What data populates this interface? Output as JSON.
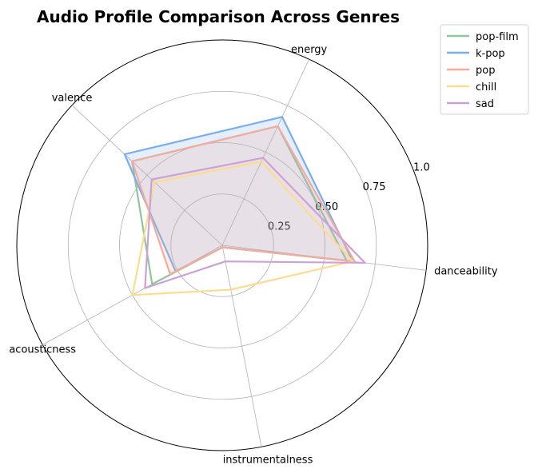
{
  "chart_data": {
    "type": "radar",
    "title": "Audio Profile Comparison Across Genres",
    "axes": [
      "danceability",
      "energy",
      "valence",
      "acousticness",
      "instrumentalness"
    ],
    "rlim": [
      0,
      1.0
    ],
    "rticks": [
      "0.25",
      "0.50",
      "0.75",
      "1.0"
    ],
    "grid": true,
    "legend_position": "top-right outside",
    "series": [
      {
        "name": "pop-film",
        "color": "#8fc79a",
        "fill": false,
        "values": [
          0.61,
          0.64,
          0.6,
          0.39,
          0.01
        ]
      },
      {
        "name": "k-pop",
        "color": "#7aaeea",
        "fill": true,
        "values": [
          0.64,
          0.69,
          0.65,
          0.26,
          0.01
        ]
      },
      {
        "name": "pop",
        "color": "#f5ab9c",
        "fill": true,
        "values": [
          0.65,
          0.64,
          0.6,
          0.29,
          0.01
        ]
      },
      {
        "name": "chill",
        "color": "#fcdc8f",
        "fill": false,
        "values": [
          0.64,
          0.45,
          0.45,
          0.5,
          0.22
        ]
      },
      {
        "name": "sad",
        "color": "#cba1d6",
        "fill": false,
        "values": [
          0.7,
          0.47,
          0.47,
          0.43,
          0.08
        ]
      }
    ]
  }
}
